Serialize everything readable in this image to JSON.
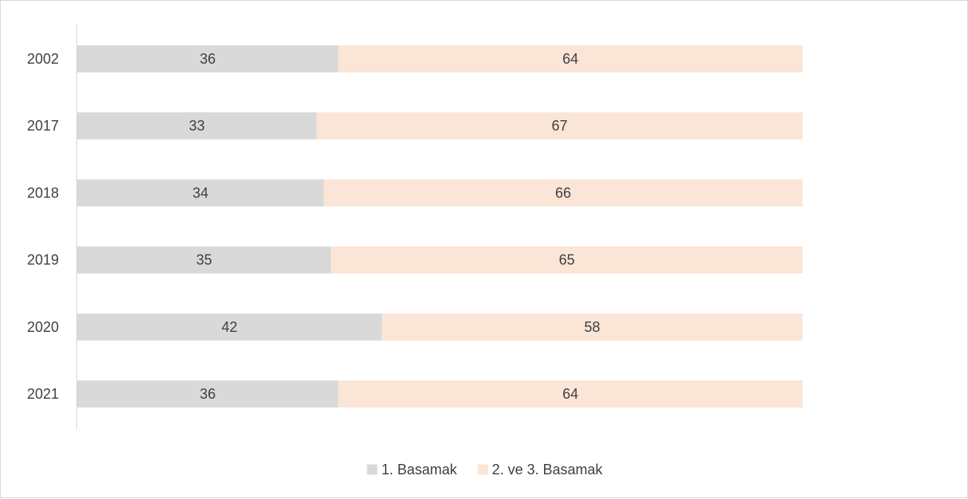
{
  "chart_data": {
    "type": "bar",
    "orientation": "horizontal",
    "stacked": true,
    "categories": [
      "2002",
      "2017",
      "2018",
      "2019",
      "2020",
      "2021"
    ],
    "series": [
      {
        "name": "1. Basamak",
        "values": [
          36,
          33,
          34,
          35,
          42,
          36
        ],
        "color": "#d9d9d9"
      },
      {
        "name": "2. ve 3. Basamak",
        "values": [
          64,
          67,
          66,
          65,
          58,
          64
        ],
        "color": "#fbe5d6"
      }
    ],
    "xlim": [
      0,
      100
    ],
    "grid": false,
    "legend": "bottom",
    "data_labels": true
  }
}
